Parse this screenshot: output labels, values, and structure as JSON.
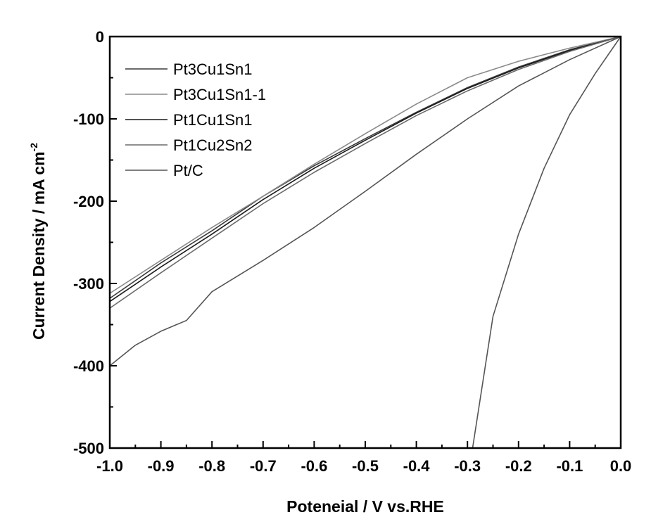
{
  "chart_data": {
    "type": "line",
    "title": "",
    "xlabel": "Poteneial / V vs.RHE",
    "ylabel": "Current Density / mA cm",
    "ylabel_sup": "-2",
    "xlim": [
      -1.0,
      0.0
    ],
    "ylim": [
      -500,
      0
    ],
    "x_ticks": [
      -1.0,
      -0.9,
      -0.8,
      -0.7,
      -0.6,
      -0.5,
      -0.4,
      -0.3,
      -0.2,
      -0.1,
      0.0
    ],
    "x_tick_labels": [
      "-1.0",
      "-0.9",
      "-0.8",
      "-0.7",
      "-0.6",
      "-0.5",
      "-0.4",
      "-0.3",
      "-0.2",
      "-0.1",
      "0.0"
    ],
    "y_ticks": [
      0,
      -100,
      -200,
      -300,
      -400,
      -500
    ],
    "y_tick_labels": [
      "0",
      "-100",
      "-200",
      "-300",
      "-400",
      "-500"
    ],
    "grid": false,
    "legend_position": "top-left",
    "series": [
      {
        "name": "Pt3Cu1Sn1",
        "color": "#3a3a3a",
        "points": [
          [
            0.0,
            0
          ],
          [
            -0.1,
            -16
          ],
          [
            -0.2,
            -37
          ],
          [
            -0.3,
            -62
          ],
          [
            -0.4,
            -92
          ],
          [
            -0.5,
            -124
          ],
          [
            -0.6,
            -157
          ],
          [
            -0.7,
            -194
          ],
          [
            -0.8,
            -236
          ],
          [
            -0.9,
            -275
          ],
          [
            -1.0,
            -318
          ]
        ]
      },
      {
        "name": "Pt3Cu1Sn1-1",
        "color": "#8a8a8a",
        "points": [
          [
            0.0,
            0
          ],
          [
            -0.1,
            -14
          ],
          [
            -0.2,
            -30
          ],
          [
            -0.3,
            -50
          ],
          [
            -0.4,
            -82
          ],
          [
            -0.5,
            -118
          ],
          [
            -0.6,
            -155
          ],
          [
            -0.7,
            -194
          ],
          [
            -0.8,
            -232
          ],
          [
            -0.9,
            -272
          ],
          [
            -1.0,
            -312
          ]
        ]
      },
      {
        "name": "Pt1Cu1Sn1",
        "color": "#1a1a1a",
        "points": [
          [
            0.0,
            0
          ],
          [
            -0.1,
            -17
          ],
          [
            -0.2,
            -38
          ],
          [
            -0.3,
            -63
          ],
          [
            -0.4,
            -93
          ],
          [
            -0.5,
            -126
          ],
          [
            -0.6,
            -160
          ],
          [
            -0.7,
            -198
          ],
          [
            -0.8,
            -240
          ],
          [
            -0.9,
            -280
          ],
          [
            -1.0,
            -322
          ]
        ]
      },
      {
        "name": "Pt1Cu2Sn2",
        "color": "#6a6a6a",
        "points": [
          [
            0.0,
            0
          ],
          [
            -0.1,
            -18
          ],
          [
            -0.2,
            -40
          ],
          [
            -0.3,
            -66
          ],
          [
            -0.4,
            -96
          ],
          [
            -0.5,
            -130
          ],
          [
            -0.6,
            -165
          ],
          [
            -0.7,
            -203
          ],
          [
            -0.8,
            -245
          ],
          [
            -0.9,
            -287
          ],
          [
            -1.0,
            -330
          ]
        ]
      },
      {
        "name": "Pt/C",
        "color": "#555555",
        "points": [
          [
            0.0,
            0
          ],
          [
            -0.05,
            -45
          ],
          [
            -0.1,
            -95
          ],
          [
            -0.15,
            -160
          ],
          [
            -0.2,
            -240
          ],
          [
            -0.25,
            -340
          ],
          [
            -0.29,
            -500
          ]
        ]
      },
      {
        "name": "",
        "color": "#555555",
        "points": [
          [
            0.0,
            0
          ],
          [
            -0.1,
            -28
          ],
          [
            -0.2,
            -60
          ],
          [
            -0.3,
            -100
          ],
          [
            -0.4,
            -143
          ],
          [
            -0.5,
            -188
          ],
          [
            -0.6,
            -232
          ],
          [
            -0.7,
            -272
          ],
          [
            -0.8,
            -310
          ],
          [
            -0.85,
            -345
          ],
          [
            -0.9,
            -358
          ],
          [
            -0.95,
            -375
          ],
          [
            -1.0,
            -400
          ]
        ]
      }
    ]
  }
}
